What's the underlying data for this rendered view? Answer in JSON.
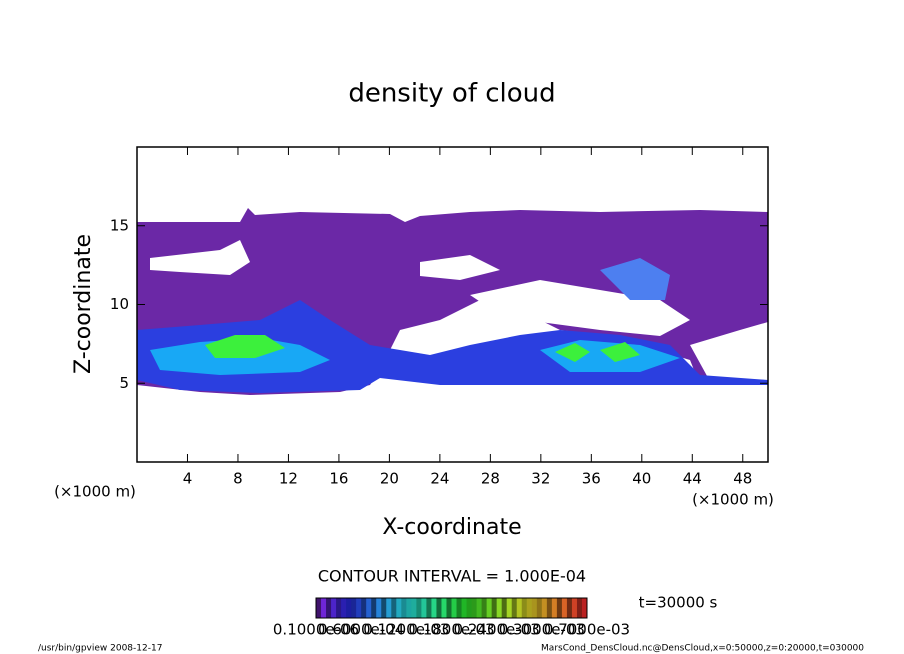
{
  "chart_data": {
    "type": "contour",
    "title": "density of cloud",
    "x_label": "X-coordinate",
    "y_label": "Z-coordinate",
    "x_unit_left": "(×1000 m)",
    "x_unit_right": "(×1000 m)",
    "xlim": [
      0,
      50
    ],
    "ylim": [
      0,
      20
    ],
    "xticks": [
      4,
      8,
      12,
      16,
      20,
      24,
      28,
      32,
      36,
      40,
      44,
      48
    ],
    "yticks": [
      5,
      10,
      15
    ],
    "contour_interval": "CONTOUR INTERVAL = 1.000E-04",
    "time_label": "t=30000 s",
    "colorbar_labels": [
      "0.1000e-06",
      "0.6000e-04",
      "0.1200e-03",
      "0.1800e-03",
      "0.2400e-03",
      "0.3000e-03",
      "0.7000e-03"
    ],
    "footer_left": "/usr/bin/gpview  2008-12-17",
    "footer_right": "MarsCond_DensCloud.nc@DensCloud,x=0:50000,z=0:20000,t=030000"
  }
}
